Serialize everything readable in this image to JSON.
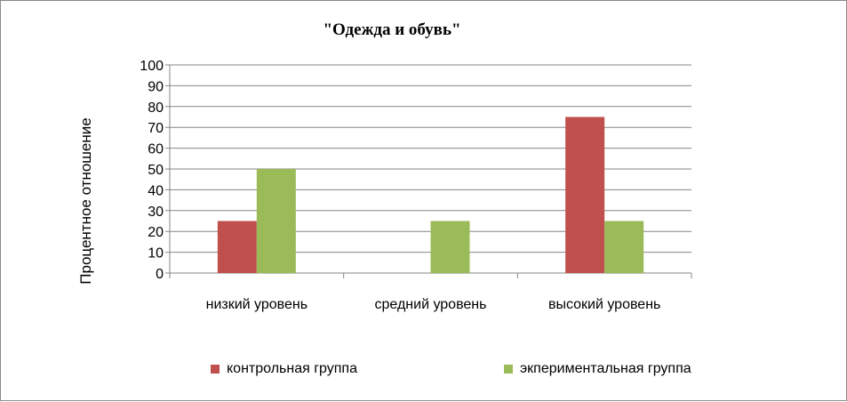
{
  "chart_data": {
    "type": "bar",
    "title": "\"Одежда и обувь\"",
    "xlabel": "",
    "ylabel": "Процентное отношение",
    "categories": [
      "низкий уровень",
      "средний уровень",
      "высокий уровень"
    ],
    "series": [
      {
        "name": "контрольная группа",
        "color": "#c0504d",
        "values": [
          25,
          0,
          75
        ]
      },
      {
        "name": "экпериментальная группа",
        "color": "#9bbb59",
        "values": [
          50,
          25,
          25
        ]
      }
    ],
    "ylim": [
      0,
      100
    ],
    "yticks": [
      0,
      10,
      20,
      30,
      40,
      50,
      60,
      70,
      80,
      90,
      100
    ],
    "grid": true,
    "legend_position": "bottom"
  }
}
